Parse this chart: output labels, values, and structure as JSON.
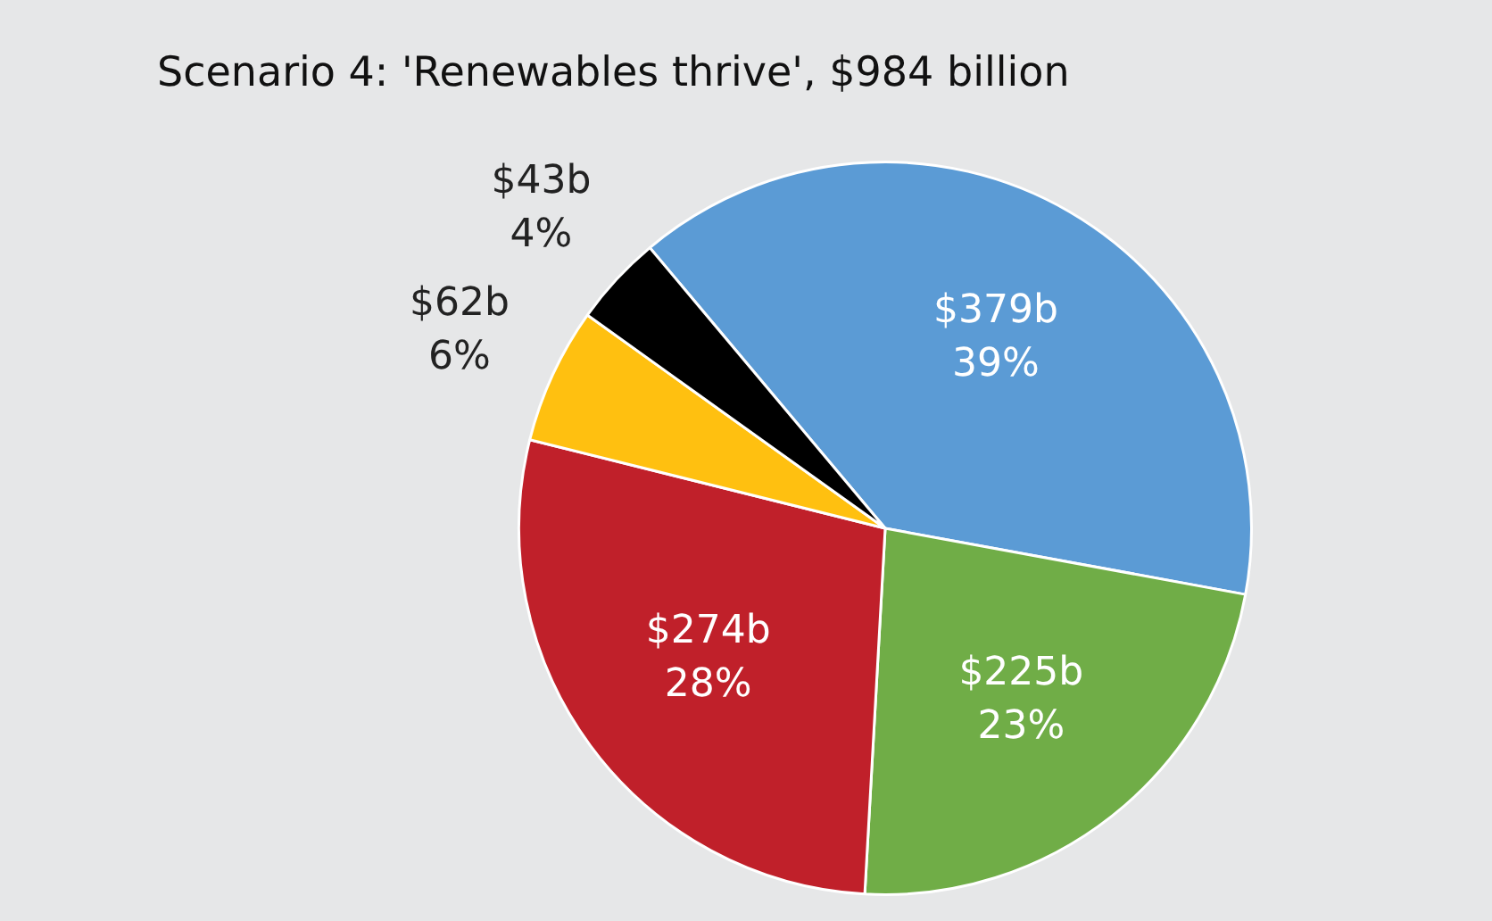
{
  "chart_data": {
    "type": "pie",
    "title": "Scenario 4: 'Renewables thrive', $984 billion",
    "categories": [
      null,
      null,
      null,
      null,
      null
    ],
    "values": [
      39,
      23,
      28,
      6,
      4
    ],
    "colors": [
      "#5b9bd5",
      "#70ad47",
      "#c0202a",
      "#ffc010",
      "#000000"
    ],
    "value_labels": [
      "$379b\n39%",
      "$225b\n23%",
      "$274b\n28%",
      "$62b\n6%",
      "$43b\n4%"
    ],
    "legend": false
  }
}
